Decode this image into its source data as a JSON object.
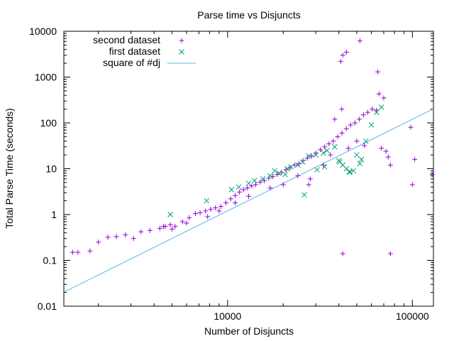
{
  "chart_data": {
    "type": "scatter",
    "title": "Parse time vs Disjuncts",
    "xlabel": "Number of Disjuncts",
    "ylabel": "Total Parse Time (seconds)",
    "xscale": "log",
    "yscale": "log",
    "xlim": [
      1300,
      130000
    ],
    "ylim": [
      0.01,
      10000
    ],
    "x_ticks": [
      10000,
      100000
    ],
    "x_tick_labels": [
      "10000",
      "100000"
    ],
    "y_ticks": [
      0.01,
      0.1,
      1,
      10,
      100,
      1000,
      10000
    ],
    "y_tick_labels": [
      "0.01",
      "0.1",
      "1",
      "10",
      "100",
      "1000",
      "10000"
    ],
    "legend_position": "top-left",
    "series": [
      {
        "name": "second dataset",
        "marker": "plus",
        "color": "#9400d3",
        "points": [
          [
            1450,
            0.15
          ],
          [
            1550,
            0.15
          ],
          [
            1800,
            0.16
          ],
          [
            2000,
            0.25
          ],
          [
            2250,
            0.32
          ],
          [
            2500,
            0.33
          ],
          [
            2800,
            0.36
          ],
          [
            3100,
            0.3
          ],
          [
            3400,
            0.42
          ],
          [
            3800,
            0.45
          ],
          [
            4300,
            0.5
          ],
          [
            4600,
            0.55
          ],
          [
            4900,
            0.6
          ],
          [
            5200,
            0.55
          ],
          [
            5700,
            0.7
          ],
          [
            6200,
            0.85
          ],
          [
            6700,
            1.05
          ],
          [
            7100,
            1.1
          ],
          [
            7600,
            1.2
          ],
          [
            8100,
            1.3
          ],
          [
            8600,
            1.4
          ],
          [
            9200,
            1.5
          ],
          [
            9800,
            1.8
          ],
          [
            10400,
            2.2
          ],
          [
            11000,
            2.6
          ],
          [
            11600,
            3.1
          ],
          [
            12200,
            3.5
          ],
          [
            12800,
            3.8
          ],
          [
            13500,
            4.2
          ],
          [
            14200,
            4.5
          ],
          [
            15000,
            5.1
          ],
          [
            15800,
            5.5
          ],
          [
            16700,
            6.2
          ],
          [
            17600,
            6.8
          ],
          [
            18600,
            7.5
          ],
          [
            19600,
            8.3
          ],
          [
            20700,
            9.5
          ],
          [
            21800,
            10.5
          ],
          [
            23000,
            12
          ],
          [
            24300,
            13
          ],
          [
            25600,
            15
          ],
          [
            27000,
            17
          ],
          [
            28500,
            19
          ],
          [
            30100,
            22
          ],
          [
            31800,
            26
          ],
          [
            33500,
            30
          ],
          [
            35400,
            35
          ],
          [
            37300,
            40
          ],
          [
            39400,
            50
          ],
          [
            41600,
            60
          ],
          [
            43900,
            75
          ],
          [
            46300,
            90
          ],
          [
            48900,
            100
          ],
          [
            51600,
            120
          ],
          [
            54400,
            150
          ],
          [
            57400,
            170
          ],
          [
            60600,
            200
          ],
          [
            64000,
            190
          ],
          [
            41000,
            2200
          ],
          [
            42000,
            3000
          ],
          [
            44000,
            3500
          ],
          [
            52000,
            6200
          ],
          [
            65000,
            1300
          ],
          [
            66000,
            430
          ],
          [
            70000,
            350
          ],
          [
            41500,
            200
          ],
          [
            38000,
            120
          ],
          [
            45000,
            28
          ],
          [
            50000,
            40
          ],
          [
            55000,
            32
          ],
          [
            68000,
            28
          ],
          [
            72000,
            24
          ],
          [
            74000,
            18
          ],
          [
            76000,
            12
          ],
          [
            98000,
            80
          ],
          [
            103000,
            16
          ],
          [
            100000,
            4.5
          ],
          [
            128000,
            7.5
          ],
          [
            42000,
            0.14
          ],
          [
            76000,
            0.14
          ],
          [
            27500,
            4.5
          ],
          [
            28000,
            6
          ],
          [
            33000,
            12
          ],
          [
            36000,
            20
          ],
          [
            24000,
            7
          ],
          [
            20000,
            4.5
          ],
          [
            17000,
            3.8
          ],
          [
            13000,
            2.5
          ],
          [
            11000,
            1.8
          ],
          [
            9000,
            1.2
          ],
          [
            7800,
            0.9
          ],
          [
            6000,
            0.65
          ],
          [
            5000,
            0.48
          ],
          [
            4500,
            0.55
          ]
        ]
      },
      {
        "name": "first dataset",
        "marker": "cross",
        "color": "#009e73",
        "points": [
          [
            4900,
            1.0
          ],
          [
            7700,
            2.0
          ],
          [
            10500,
            3.5
          ],
          [
            11500,
            4.0
          ],
          [
            13000,
            4.8
          ],
          [
            14000,
            5.5
          ],
          [
            15500,
            6.0
          ],
          [
            17000,
            7.0
          ],
          [
            19000,
            8.0
          ],
          [
            20500,
            7.5
          ],
          [
            22000,
            11
          ],
          [
            24000,
            12
          ],
          [
            25500,
            14
          ],
          [
            27500,
            19
          ],
          [
            30000,
            20
          ],
          [
            33000,
            22
          ],
          [
            34500,
            25
          ],
          [
            38000,
            30
          ],
          [
            40000,
            15
          ],
          [
            42000,
            12
          ],
          [
            44000,
            10
          ],
          [
            46000,
            8.5
          ],
          [
            48000,
            9
          ],
          [
            50000,
            20
          ],
          [
            53000,
            16
          ],
          [
            56000,
            40
          ],
          [
            60000,
            90
          ],
          [
            64000,
            170
          ],
          [
            68000,
            220
          ],
          [
            26000,
            2.7
          ],
          [
            30500,
            9.5
          ],
          [
            33500,
            11
          ],
          [
            40500,
            14
          ],
          [
            45500,
            8.5
          ],
          [
            52000,
            13
          ],
          [
            18000,
            9
          ],
          [
            21000,
            10
          ]
        ]
      }
    ],
    "line_series": {
      "name": "square of #dj",
      "color": "#56b4e9",
      "function": "square",
      "coefficient": 1.2e-08
    }
  }
}
